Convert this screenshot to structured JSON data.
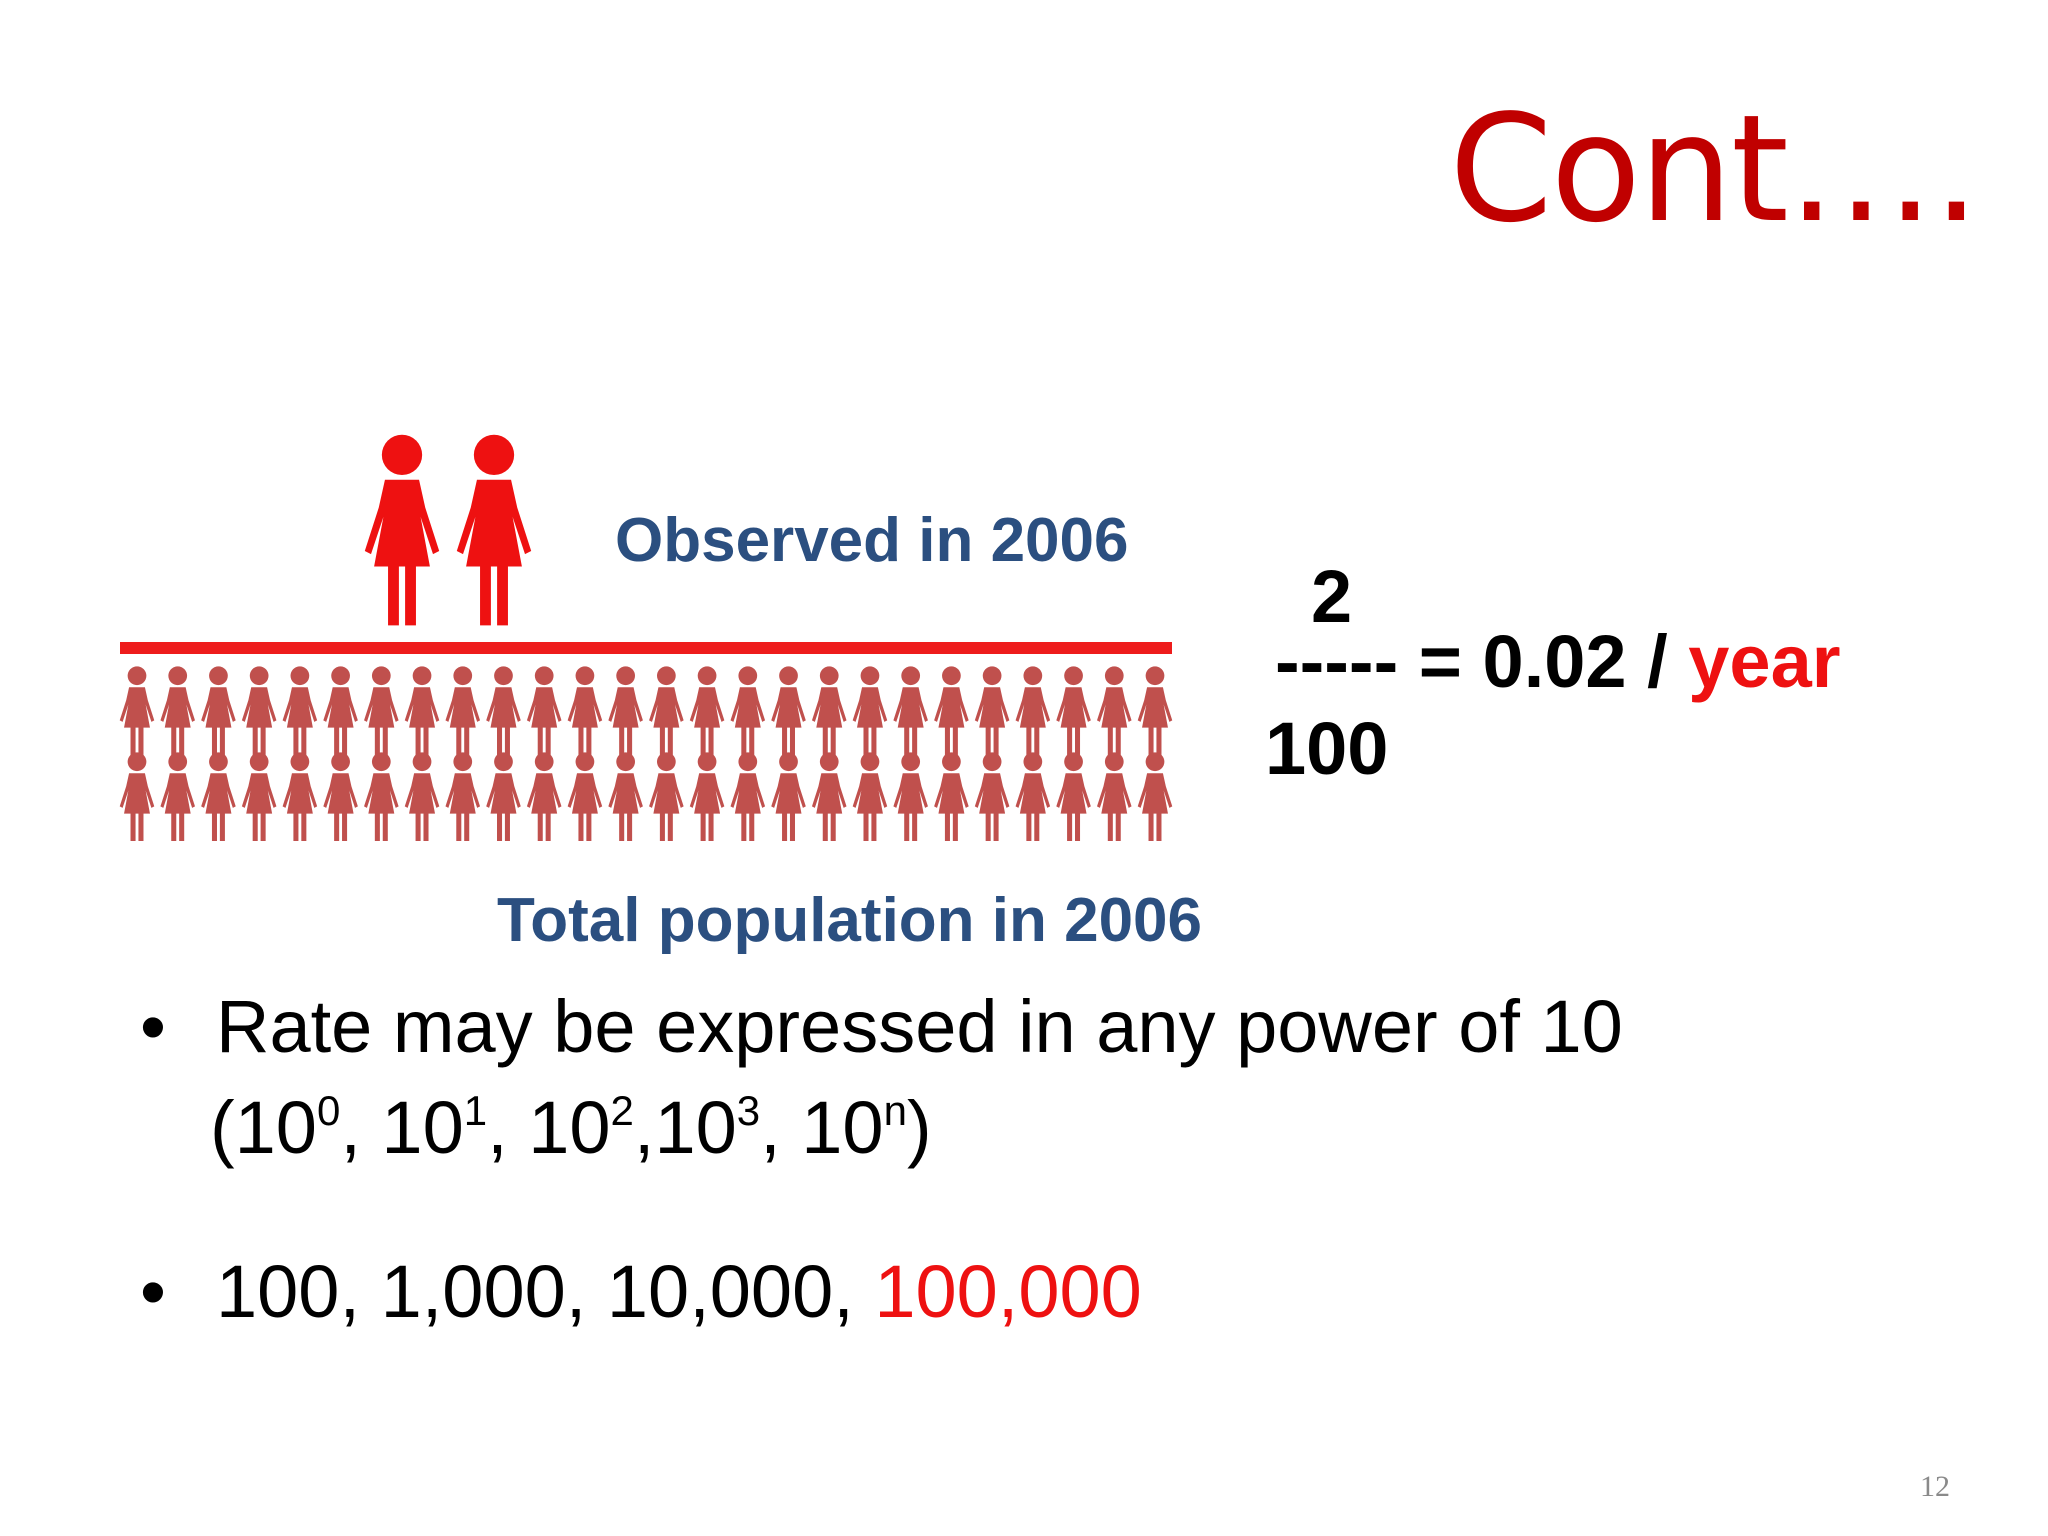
{
  "slide": {
    "title": "Cont….",
    "page_number": "12"
  },
  "figure": {
    "observed_label": "Observed in 2006",
    "total_label": "Total population in 2006",
    "observed_count": 2,
    "total_count": 52,
    "observed_color": "#ee1111",
    "population_color": "#c0504d",
    "divider_color": "#ee1c1c"
  },
  "formula": {
    "numerator": "2",
    "line": "----- = 0.02 /",
    "unit": "year",
    "denominator": "100"
  },
  "bullets": {
    "marker": "•",
    "item1_line1": "Rate may be expressed in any power of 10",
    "item1_line2": {
      "open": "(10",
      "e0": "0",
      "p1": ", 10",
      "e1": "1",
      "p2": ", 10",
      "e2": "2",
      "p3": ",10",
      "e3": "3",
      "p4": ", 10",
      "en": "n",
      "close": ")"
    },
    "item2_prefix": "100, 1,000, 10,000, ",
    "item2_highlight": "100,000"
  }
}
